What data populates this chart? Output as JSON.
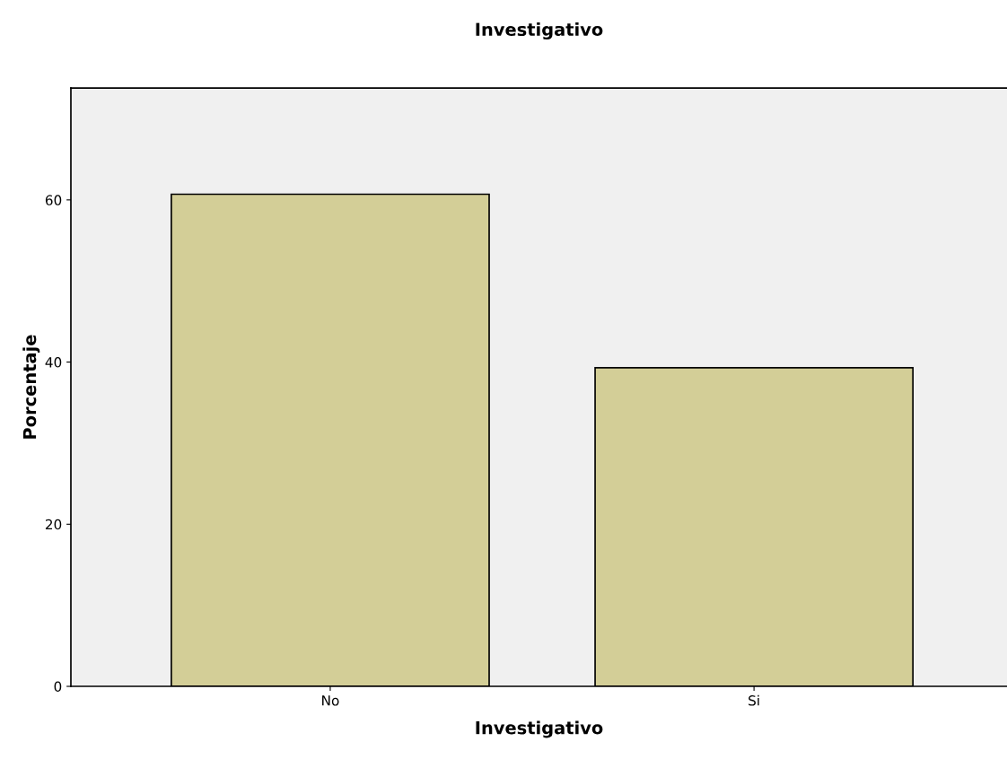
{
  "chart_data": {
    "type": "bar",
    "title": "Investigativo",
    "xlabel": "Investigativo",
    "ylabel": "Porcentaje",
    "categories": [
      "No",
      "Si"
    ],
    "values": [
      60.7,
      39.3
    ],
    "color": "#d3ce97",
    "ylim": [
      0,
      73.8
    ],
    "yticks": [
      0,
      20,
      40,
      60
    ],
    "grid": false,
    "legend": false
  }
}
